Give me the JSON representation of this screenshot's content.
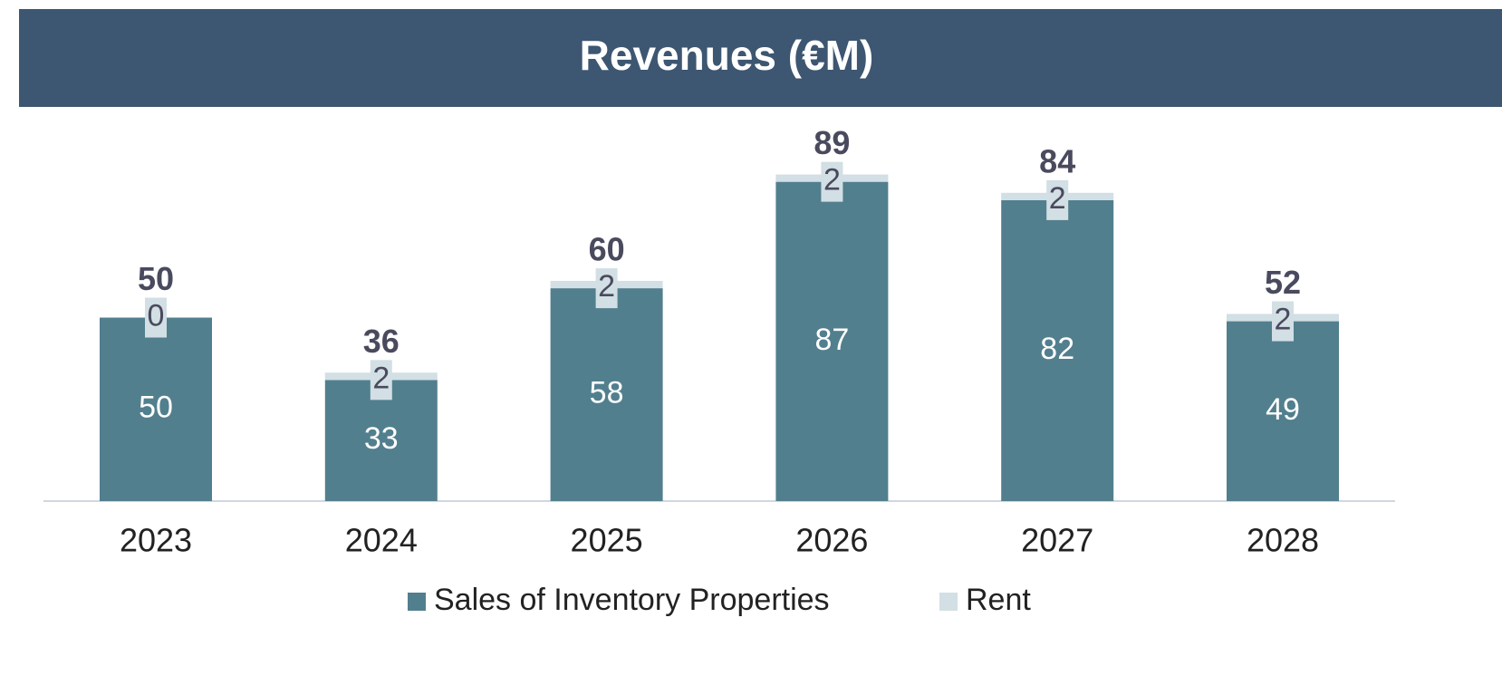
{
  "chart_data": {
    "type": "stacked_bar",
    "title": "Revenues (€M)",
    "categories": [
      "2023",
      "2024",
      "2025",
      "2026",
      "2027",
      "2028"
    ],
    "series": [
      {
        "name": "Sales of Inventory Properties",
        "color": "#527f8e",
        "values": [
          50,
          33,
          58,
          87,
          82,
          49
        ]
      },
      {
        "name": "Rent",
        "color": "#d2dfe4",
        "values": [
          0,
          2,
          2,
          2,
          2,
          2
        ]
      }
    ],
    "totals": [
      50,
      36,
      60,
      89,
      84,
      52
    ],
    "legend": "bottom"
  }
}
